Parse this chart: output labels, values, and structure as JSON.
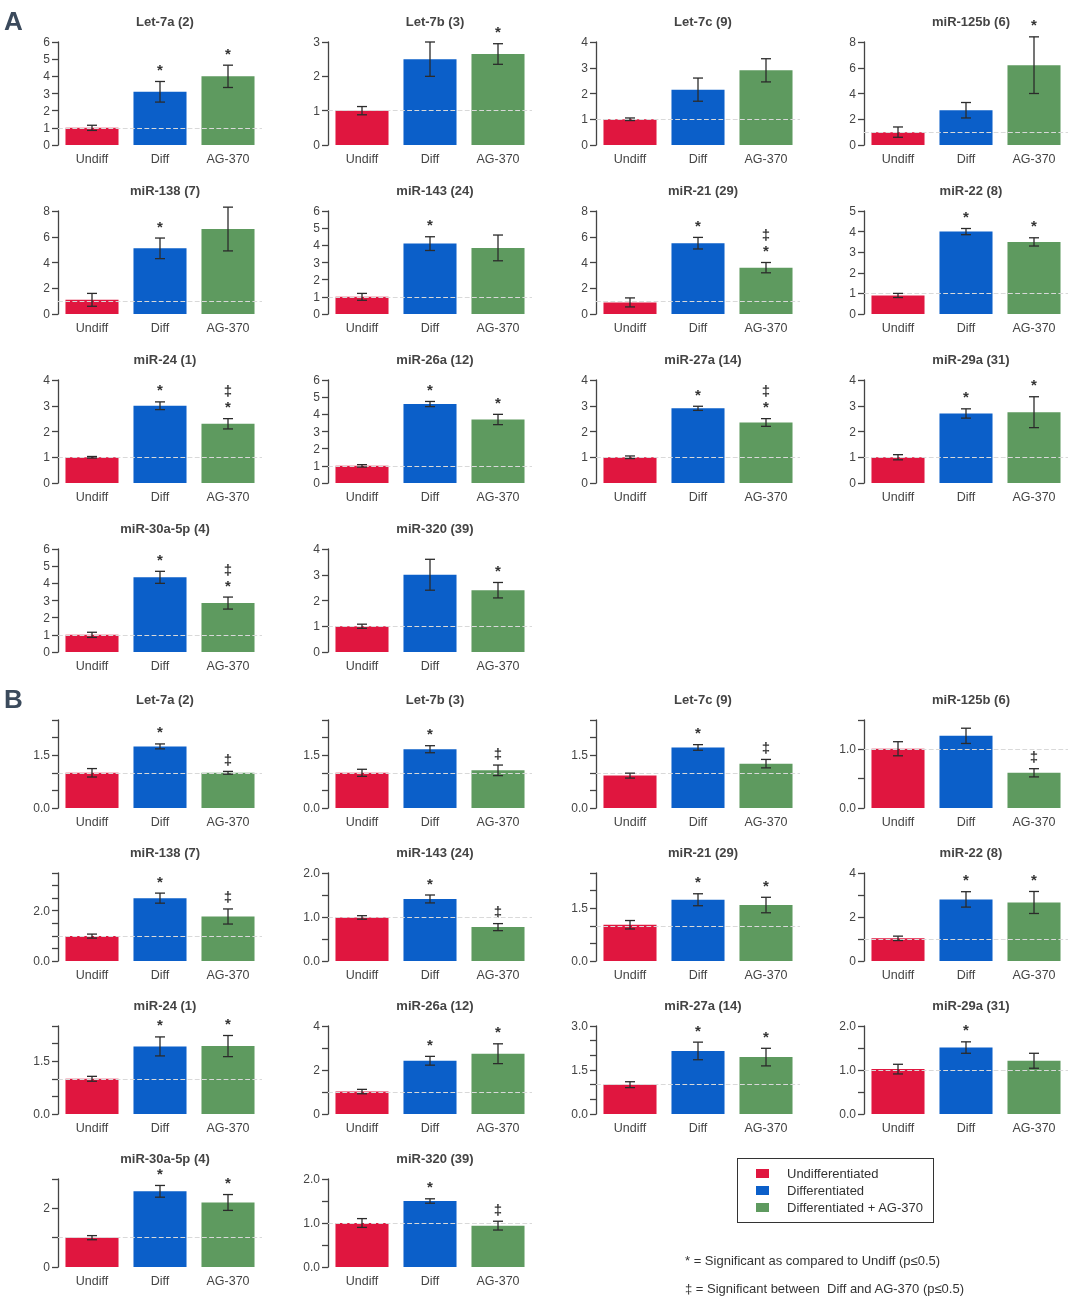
{
  "chart_data": [
    {
      "type": "bar",
      "title": "Let-7a (2)",
      "categories": [
        "Undiff",
        "Diff",
        "AG-370"
      ],
      "values": [
        1.0,
        3.1,
        4.0
      ],
      "errors": [
        0.15,
        0.6,
        0.65
      ],
      "value_labels": [
        null,
        "*",
        "*"
      ],
      "colors": [
        "#e0163f",
        "#0b5fc9",
        "#5e9a5f"
      ],
      "ylim": [
        0,
        6
      ],
      "yticks": [
        0,
        1,
        2,
        3,
        4,
        5,
        6
      ],
      "ref_lines": [
        {
          "axis": "y",
          "value": 1,
          "color": "#d9d9d9",
          "line_style": "dashed"
        }
      ],
      "annotations": [
        "A"
      ]
    },
    {
      "type": "bar",
      "title": "Let-7b (3)",
      "categories": [
        "Undiff",
        "Diff",
        "AG-370"
      ],
      "values": [
        1.0,
        2.5,
        2.65
      ],
      "errors": [
        0.12,
        0.5,
        0.3
      ],
      "value_labels": [
        null,
        null,
        "*"
      ],
      "colors": [
        "#e0163f",
        "#0b5fc9",
        "#5e9a5f"
      ],
      "ylim": [
        0,
        3
      ],
      "yticks": [
        0,
        1,
        2,
        3
      ],
      "ref_lines": [
        {
          "axis": "y",
          "value": 1,
          "color": "#d9d9d9",
          "line_style": "dashed"
        }
      ]
    },
    {
      "type": "bar",
      "title": "Let-7c (9)",
      "categories": [
        "Undiff",
        "Diff",
        "AG-370"
      ],
      "values": [
        1.0,
        2.15,
        2.9
      ],
      "errors": [
        0.05,
        0.45,
        0.45
      ],
      "colors": [
        "#e0163f",
        "#0b5fc9",
        "#5e9a5f"
      ],
      "ylim": [
        0,
        4
      ],
      "yticks": [
        0,
        1,
        2,
        3,
        4
      ],
      "ref_lines": [
        {
          "axis": "y",
          "value": 1,
          "color": "#d9d9d9",
          "line_style": "dashed"
        }
      ]
    },
    {
      "type": "bar",
      "title": "miR-125b (6)",
      "categories": [
        "Undiff",
        "Diff",
        "AG-370"
      ],
      "values": [
        1.0,
        2.7,
        6.2
      ],
      "errors": [
        0.4,
        0.6,
        2.2
      ],
      "value_labels": [
        null,
        null,
        "*"
      ],
      "colors": [
        "#e0163f",
        "#0b5fc9",
        "#5e9a5f"
      ],
      "ylim": [
        0,
        8
      ],
      "yticks": [
        0,
        2,
        4,
        6,
        8
      ],
      "ref_lines": [
        {
          "axis": "y",
          "value": 1,
          "color": "#d9d9d9",
          "line_style": "dashed"
        }
      ]
    },
    {
      "type": "bar",
      "title": "miR-138 (7)",
      "categories": [
        "Undiff",
        "Diff",
        "AG-370"
      ],
      "values": [
        1.1,
        5.1,
        6.6
      ],
      "errors": [
        0.5,
        0.8,
        1.7
      ],
      "value_labels": [
        null,
        "*",
        null
      ],
      "colors": [
        "#e0163f",
        "#0b5fc9",
        "#5e9a5f"
      ],
      "ylim": [
        0,
        8
      ],
      "yticks": [
        0,
        2,
        4,
        6,
        8
      ],
      "ref_lines": [
        {
          "axis": "y",
          "value": 1,
          "color": "#d9d9d9",
          "line_style": "dashed"
        }
      ]
    },
    {
      "type": "bar",
      "title": "miR-143 (24)",
      "categories": [
        "Undiff",
        "Diff",
        "AG-370"
      ],
      "values": [
        1.0,
        4.1,
        3.85
      ],
      "errors": [
        0.2,
        0.4,
        0.75
      ],
      "value_labels": [
        null,
        "*",
        null
      ],
      "colors": [
        "#e0163f",
        "#0b5fc9",
        "#5e9a5f"
      ],
      "ylim": [
        0,
        6
      ],
      "yticks": [
        0,
        1,
        2,
        3,
        4,
        5,
        6
      ],
      "ref_lines": [
        {
          "axis": "y",
          "value": 1,
          "color": "#d9d9d9",
          "line_style": "dashed"
        }
      ]
    },
    {
      "type": "bar",
      "title": "miR-21 (29)",
      "categories": [
        "Undiff",
        "Diff",
        "AG-370"
      ],
      "values": [
        0.9,
        5.5,
        3.6
      ],
      "errors": [
        0.35,
        0.45,
        0.4
      ],
      "value_labels": [
        null,
        "*",
        "‡\n*"
      ],
      "colors": [
        "#e0163f",
        "#0b5fc9",
        "#5e9a5f"
      ],
      "ylim": [
        0,
        8
      ],
      "yticks": [
        0,
        2,
        4,
        6,
        8
      ],
      "ref_lines": [
        {
          "axis": "y",
          "value": 1,
          "color": "#d9d9d9",
          "line_style": "dashed"
        }
      ]
    },
    {
      "type": "bar",
      "title": "miR-22 (8)",
      "categories": [
        "Undiff",
        "Diff",
        "AG-370"
      ],
      "values": [
        0.9,
        4.0,
        3.5
      ],
      "errors": [
        0.1,
        0.15,
        0.2
      ],
      "value_labels": [
        null,
        "*",
        "*"
      ],
      "colors": [
        "#e0163f",
        "#0b5fc9",
        "#5e9a5f"
      ],
      "ylim": [
        0,
        5
      ],
      "yticks": [
        0,
        1,
        2,
        3,
        4,
        5
      ],
      "ref_lines": [
        {
          "axis": "y",
          "value": 1,
          "color": "#d9d9d9",
          "line_style": "dashed"
        }
      ]
    },
    {
      "type": "bar",
      "title": "miR-24 (1)",
      "categories": [
        "Undiff",
        "Diff",
        "AG-370"
      ],
      "values": [
        1.0,
        3.0,
        2.3
      ],
      "errors": [
        0.03,
        0.15,
        0.2
      ],
      "value_labels": [
        null,
        "*",
        "‡\n*"
      ],
      "colors": [
        "#e0163f",
        "#0b5fc9",
        "#5e9a5f"
      ],
      "ylim": [
        0,
        4
      ],
      "yticks": [
        0,
        1,
        2,
        3,
        4
      ],
      "ref_lines": [
        {
          "axis": "y",
          "value": 1,
          "color": "#d9d9d9",
          "line_style": "dashed"
        }
      ]
    },
    {
      "type": "bar",
      "title": "miR-26a (12)",
      "categories": [
        "Undiff",
        "Diff",
        "AG-370"
      ],
      "values": [
        1.0,
        4.6,
        3.7
      ],
      "errors": [
        0.07,
        0.15,
        0.3
      ],
      "value_labels": [
        null,
        "*",
        "*"
      ],
      "colors": [
        "#e0163f",
        "#0b5fc9",
        "#5e9a5f"
      ],
      "ylim": [
        0,
        6
      ],
      "yticks": [
        0,
        1,
        2,
        3,
        4,
        5,
        6
      ],
      "ref_lines": [
        {
          "axis": "y",
          "value": 1,
          "color": "#d9d9d9",
          "line_style": "dashed"
        }
      ]
    },
    {
      "type": "bar",
      "title": "miR-27a (14)",
      "categories": [
        "Undiff",
        "Diff",
        "AG-370"
      ],
      "values": [
        1.0,
        2.9,
        2.35
      ],
      "errors": [
        0.05,
        0.08,
        0.15
      ],
      "value_labels": [
        null,
        "*",
        "‡\n*"
      ],
      "colors": [
        "#e0163f",
        "#0b5fc9",
        "#5e9a5f"
      ],
      "ylim": [
        0,
        4
      ],
      "yticks": [
        0,
        1,
        2,
        3,
        4
      ],
      "ref_lines": [
        {
          "axis": "y",
          "value": 1,
          "color": "#d9d9d9",
          "line_style": "dashed"
        }
      ]
    },
    {
      "type": "bar",
      "title": "miR-29a (31)",
      "categories": [
        "Undiff",
        "Diff",
        "AG-370"
      ],
      "values": [
        1.0,
        2.7,
        2.75
      ],
      "errors": [
        0.1,
        0.18,
        0.6
      ],
      "value_labels": [
        null,
        "*",
        "*"
      ],
      "colors": [
        "#e0163f",
        "#0b5fc9",
        "#5e9a5f"
      ],
      "ylim": [
        0,
        4
      ],
      "yticks": [
        0,
        1,
        2,
        3,
        4
      ],
      "ref_lines": [
        {
          "axis": "y",
          "value": 1,
          "color": "#d9d9d9",
          "line_style": "dashed"
        }
      ]
    },
    {
      "type": "bar",
      "title": "miR-30a-5p (4)",
      "categories": [
        "Undiff",
        "Diff",
        "AG-370"
      ],
      "values": [
        1.0,
        4.35,
        2.85
      ],
      "errors": [
        0.15,
        0.35,
        0.35
      ],
      "value_labels": [
        null,
        "*",
        "‡\n*"
      ],
      "colors": [
        "#e0163f",
        "#0b5fc9",
        "#5e9a5f"
      ],
      "ylim": [
        0,
        6
      ],
      "yticks": [
        0,
        1,
        2,
        3,
        4,
        5,
        6
      ],
      "ref_lines": [
        {
          "axis": "y",
          "value": 1,
          "color": "#d9d9d9",
          "line_style": "dashed"
        }
      ]
    },
    {
      "type": "bar",
      "title": "miR-320 (39)",
      "categories": [
        "Undiff",
        "Diff",
        "AG-370"
      ],
      "values": [
        1.0,
        3.0,
        2.4
      ],
      "errors": [
        0.08,
        0.6,
        0.3
      ],
      "value_labels": [
        null,
        null,
        "*"
      ],
      "colors": [
        "#e0163f",
        "#0b5fc9",
        "#5e9a5f"
      ],
      "ylim": [
        0,
        4
      ],
      "yticks": [
        0,
        1,
        2,
        3,
        4
      ],
      "ref_lines": [
        {
          "axis": "y",
          "value": 1,
          "color": "#d9d9d9",
          "line_style": "dashed"
        }
      ]
    },
    {
      "type": "bar",
      "title": "Let-7a (2)",
      "categories": [
        "Undiff",
        "Diff",
        "AG-370"
      ],
      "values": [
        1.0,
        1.75,
        1.0
      ],
      "errors": [
        0.12,
        0.07,
        0.04
      ],
      "value_labels": [
        null,
        "*",
        "‡"
      ],
      "colors": [
        "#e0163f",
        "#0b5fc9",
        "#5e9a5f"
      ],
      "ylim": [
        0,
        2.5
      ],
      "yticks": [
        {
          "value": 0,
          "label": "0.0"
        },
        {
          "value": 0.5,
          "label": null
        },
        {
          "value": 1,
          "label": null
        },
        {
          "value": 1.5,
          "label": "1.5"
        },
        {
          "value": 2,
          "label": null
        },
        {
          "value": 2.5,
          "label": null
        }
      ],
      "ref_lines": [
        {
          "axis": "y",
          "value": 1,
          "color": "#d9d9d9",
          "line_style": "dashed"
        }
      ],
      "annotations": [
        "B"
      ]
    },
    {
      "type": "bar",
      "title": "Let-7b (3)",
      "categories": [
        "Undiff",
        "Diff",
        "AG-370"
      ],
      "values": [
        1.0,
        1.67,
        1.07
      ],
      "errors": [
        0.1,
        0.1,
        0.15
      ],
      "value_labels": [
        null,
        "*",
        "‡"
      ],
      "colors": [
        "#e0163f",
        "#0b5fc9",
        "#5e9a5f"
      ],
      "ylim": [
        0,
        2.5
      ],
      "yticks": [
        {
          "value": 0,
          "label": "0.0"
        },
        {
          "value": 0.5,
          "label": null
        },
        {
          "value": 1,
          "label": null
        },
        {
          "value": 1.5,
          "label": "1.5"
        },
        {
          "value": 2,
          "label": null
        },
        {
          "value": 2.5,
          "label": null
        }
      ],
      "ref_lines": [
        {
          "axis": "y",
          "value": 1,
          "color": "#d9d9d9",
          "line_style": "dashed"
        }
      ]
    },
    {
      "type": "bar",
      "title": "Let-7c (9)",
      "categories": [
        "Undiff",
        "Diff",
        "AG-370"
      ],
      "values": [
        0.92,
        1.72,
        1.26
      ],
      "errors": [
        0.07,
        0.08,
        0.12
      ],
      "value_labels": [
        null,
        "*",
        "‡"
      ],
      "colors": [
        "#e0163f",
        "#0b5fc9",
        "#5e9a5f"
      ],
      "ylim": [
        0,
        2.5
      ],
      "yticks": [
        {
          "value": 0,
          "label": "0.0"
        },
        {
          "value": 0.5,
          "label": null
        },
        {
          "value": 1,
          "label": null
        },
        {
          "value": 1.5,
          "label": "1.5"
        },
        {
          "value": 2,
          "label": null
        },
        {
          "value": 2.5,
          "label": null
        }
      ],
      "ref_lines": [
        {
          "axis": "y",
          "value": 1,
          "color": "#d9d9d9",
          "line_style": "dashed"
        }
      ]
    },
    {
      "type": "bar",
      "title": "miR-125b (6)",
      "categories": [
        "Undiff",
        "Diff",
        "AG-370"
      ],
      "values": [
        1.01,
        1.23,
        0.6
      ],
      "errors": [
        0.12,
        0.13,
        0.07
      ],
      "value_labels": [
        null,
        null,
        "‡"
      ],
      "colors": [
        "#e0163f",
        "#0b5fc9",
        "#5e9a5f"
      ],
      "ylim": [
        0,
        1.5
      ],
      "yticks": [
        {
          "value": 0,
          "label": "0.0"
        },
        {
          "value": 0.5,
          "label": null
        },
        {
          "value": 1,
          "label": "1.0"
        },
        {
          "value": 1.5,
          "label": null
        }
      ],
      "ref_lines": [
        {
          "axis": "y",
          "value": 1,
          "color": "#d9d9d9",
          "line_style": "dashed"
        }
      ]
    },
    {
      "type": "bar",
      "title": "miR-138 (7)",
      "categories": [
        "Undiff",
        "Diff",
        "AG-370"
      ],
      "values": [
        0.99,
        2.5,
        1.77
      ],
      "errors": [
        0.08,
        0.2,
        0.3
      ],
      "value_labels": [
        null,
        "*",
        "‡"
      ],
      "colors": [
        "#e0163f",
        "#0b5fc9",
        "#5e9a5f"
      ],
      "ylim": [
        0,
        3.5
      ],
      "yticks": [
        {
          "value": 0,
          "label": "0.0"
        },
        {
          "value": 0.5,
          "label": null
        },
        {
          "value": 1,
          "label": null
        },
        {
          "value": 1.5,
          "label": null
        },
        {
          "value": 2,
          "label": "2.0"
        },
        {
          "value": 2.5,
          "label": null
        },
        {
          "value": 3,
          "label": null
        },
        {
          "value": 3.5,
          "label": null
        }
      ],
      "ref_lines": [
        {
          "axis": "y",
          "value": 1,
          "color": "#d9d9d9",
          "line_style": "dashed"
        }
      ]
    },
    {
      "type": "bar",
      "title": "miR-143 (24)",
      "categories": [
        "Undiff",
        "Diff",
        "AG-370"
      ],
      "values": [
        0.99,
        1.41,
        0.77
      ],
      "errors": [
        0.04,
        0.09,
        0.08
      ],
      "value_labels": [
        null,
        "*",
        "‡"
      ],
      "colors": [
        "#e0163f",
        "#0b5fc9",
        "#5e9a5f"
      ],
      "ylim": [
        0,
        2
      ],
      "yticks": [
        {
          "value": 0,
          "label": "0.0"
        },
        {
          "value": 0.5,
          "label": null
        },
        {
          "value": 1,
          "label": "1.0"
        },
        {
          "value": 1.5,
          "label": null
        },
        {
          "value": 2,
          "label": "2.0"
        }
      ],
      "ref_lines": [
        {
          "axis": "y",
          "value": 1,
          "color": "#d9d9d9",
          "line_style": "dashed"
        }
      ]
    },
    {
      "type": "bar",
      "title": "miR-21 (29)",
      "categories": [
        "Undiff",
        "Diff",
        "AG-370"
      ],
      "values": [
        1.03,
        1.74,
        1.59
      ],
      "errors": [
        0.12,
        0.17,
        0.22
      ],
      "value_labels": [
        null,
        "*",
        "*"
      ],
      "colors": [
        "#e0163f",
        "#0b5fc9",
        "#5e9a5f"
      ],
      "ylim": [
        0,
        2.5
      ],
      "yticks": [
        {
          "value": 0,
          "label": "0.0"
        },
        {
          "value": 0.5,
          "label": null
        },
        {
          "value": 1,
          "label": null
        },
        {
          "value": 1.5,
          "label": "1.5"
        },
        {
          "value": 2,
          "label": null
        },
        {
          "value": 2.5,
          "label": null
        }
      ],
      "ref_lines": [
        {
          "axis": "y",
          "value": 1,
          "color": "#d9d9d9",
          "line_style": "dashed"
        }
      ]
    },
    {
      "type": "bar",
      "title": "miR-22 (8)",
      "categories": [
        "Undiff",
        "Diff",
        "AG-370"
      ],
      "values": [
        1.03,
        2.8,
        2.66
      ],
      "errors": [
        0.1,
        0.35,
        0.5
      ],
      "value_labels": [
        null,
        "*",
        "*"
      ],
      "colors": [
        "#e0163f",
        "#0b5fc9",
        "#5e9a5f"
      ],
      "ylim": [
        0,
        4
      ],
      "yticks": [
        {
          "value": 0,
          "label": "0"
        },
        {
          "value": 1,
          "label": null
        },
        {
          "value": 2,
          "label": "2"
        },
        {
          "value": 3,
          "label": null
        },
        {
          "value": 4,
          "label": "4"
        }
      ],
      "ref_lines": [
        {
          "axis": "y",
          "value": 1,
          "color": "#d9d9d9",
          "line_style": "dashed"
        }
      ]
    },
    {
      "type": "bar",
      "title": "miR-24 (1)",
      "categories": [
        "Undiff",
        "Diff",
        "AG-370"
      ],
      "values": [
        1.0,
        1.92,
        1.93
      ],
      "errors": [
        0.07,
        0.27,
        0.3
      ],
      "value_labels": [
        null,
        "*",
        "*"
      ],
      "colors": [
        "#e0163f",
        "#0b5fc9",
        "#5e9a5f"
      ],
      "ylim": [
        0,
        2.5
      ],
      "yticks": [
        {
          "value": 0,
          "label": "0.0"
        },
        {
          "value": 0.5,
          "label": null
        },
        {
          "value": 1,
          "label": null
        },
        {
          "value": 1.5,
          "label": "1.5"
        },
        {
          "value": 2,
          "label": null
        },
        {
          "value": 2.5,
          "label": null
        }
      ],
      "ref_lines": [
        {
          "axis": "y",
          "value": 1,
          "color": "#d9d9d9",
          "line_style": "dashed"
        }
      ]
    },
    {
      "type": "bar",
      "title": "miR-26a (12)",
      "categories": [
        "Undiff",
        "Diff",
        "AG-370"
      ],
      "values": [
        1.02,
        2.42,
        2.74
      ],
      "errors": [
        0.1,
        0.2,
        0.45
      ],
      "value_labels": [
        null,
        "*",
        "*"
      ],
      "colors": [
        "#e0163f",
        "#0b5fc9",
        "#5e9a5f"
      ],
      "ylim": [
        0,
        4
      ],
      "yticks": [
        {
          "value": 0,
          "label": "0"
        },
        {
          "value": 1,
          "label": null
        },
        {
          "value": 2,
          "label": "2"
        },
        {
          "value": 3,
          "label": null
        },
        {
          "value": 4,
          "label": "4"
        }
      ],
      "ref_lines": [
        {
          "axis": "y",
          "value": 1,
          "color": "#d9d9d9",
          "line_style": "dashed"
        }
      ]
    },
    {
      "type": "bar",
      "title": "miR-27a (14)",
      "categories": [
        "Undiff",
        "Diff",
        "AG-370"
      ],
      "values": [
        1.0,
        2.15,
        1.94
      ],
      "errors": [
        0.1,
        0.3,
        0.3
      ],
      "value_labels": [
        null,
        "*",
        "*"
      ],
      "colors": [
        "#e0163f",
        "#0b5fc9",
        "#5e9a5f"
      ],
      "ylim": [
        0,
        3
      ],
      "yticks": [
        {
          "value": 0,
          "label": "0.0"
        },
        {
          "value": 0.5,
          "label": null
        },
        {
          "value": 1,
          "label": null
        },
        {
          "value": 1.5,
          "label": "1.5"
        },
        {
          "value": 2,
          "label": null
        },
        {
          "value": 2.5,
          "label": null
        },
        {
          "value": 3,
          "label": "3.0"
        }
      ],
      "ref_lines": [
        {
          "axis": "y",
          "value": 1,
          "color": "#d9d9d9",
          "line_style": "dashed"
        }
      ]
    },
    {
      "type": "bar",
      "title": "miR-29a (31)",
      "categories": [
        "Undiff",
        "Diff",
        "AG-370"
      ],
      "values": [
        1.02,
        1.51,
        1.21
      ],
      "errors": [
        0.11,
        0.13,
        0.17
      ],
      "value_labels": [
        null,
        "*",
        null
      ],
      "colors": [
        "#e0163f",
        "#0b5fc9",
        "#5e9a5f"
      ],
      "ylim": [
        0,
        2
      ],
      "yticks": [
        {
          "value": 0,
          "label": "0.0"
        },
        {
          "value": 0.5,
          "label": null
        },
        {
          "value": 1,
          "label": "1.0"
        },
        {
          "value": 1.5,
          "label": null
        },
        {
          "value": 2,
          "label": "2.0"
        }
      ],
      "ref_lines": [
        {
          "axis": "y",
          "value": 1,
          "color": "#d9d9d9",
          "line_style": "dashed"
        }
      ]
    },
    {
      "type": "bar",
      "title": "miR-30a-5p (4)",
      "categories": [
        "Undiff",
        "Diff",
        "AG-370"
      ],
      "values": [
        1.0,
        2.58,
        2.2
      ],
      "errors": [
        0.07,
        0.2,
        0.27
      ],
      "value_labels": [
        null,
        "*",
        "*"
      ],
      "colors": [
        "#e0163f",
        "#0b5fc9",
        "#5e9a5f"
      ],
      "ylim": [
        0,
        3
      ],
      "yticks": [
        {
          "value": 0,
          "label": "0"
        },
        {
          "value": 1,
          "label": null
        },
        {
          "value": 2,
          "label": "2"
        },
        {
          "value": 3,
          "label": null
        }
      ],
      "ref_lines": [
        {
          "axis": "y",
          "value": 1,
          "color": "#d9d9d9",
          "line_style": "dashed"
        }
      ]
    },
    {
      "type": "bar",
      "title": "miR-320 (39)",
      "categories": [
        "Undiff",
        "Diff",
        "AG-370"
      ],
      "values": [
        1.0,
        1.5,
        0.94
      ],
      "errors": [
        0.1,
        0.05,
        0.1
      ],
      "value_labels": [
        null,
        "*",
        "‡"
      ],
      "colors": [
        "#e0163f",
        "#0b5fc9",
        "#5e9a5f"
      ],
      "ylim": [
        0,
        2
      ],
      "yticks": [
        {
          "value": 0,
          "label": "0.0"
        },
        {
          "value": 0.5,
          "label": null
        },
        {
          "value": 1,
          "label": "1.0"
        },
        {
          "value": 1.5,
          "label": null
        },
        {
          "value": 2,
          "label": "2.0"
        }
      ],
      "ref_lines": [
        {
          "axis": "y",
          "value": 1,
          "color": "#d9d9d9",
          "line_style": "dashed"
        }
      ]
    },
    {
      "type": "other",
      "annotations": [
        "Undifferentiated",
        "Differentiated",
        "Differentiated + AG-370",
        "* = Significant as compared to Undiff (p≤0.5)",
        "‡ = Significant between  Diff and AG-370 (p≤0.5)"
      ]
    }
  ]
}
